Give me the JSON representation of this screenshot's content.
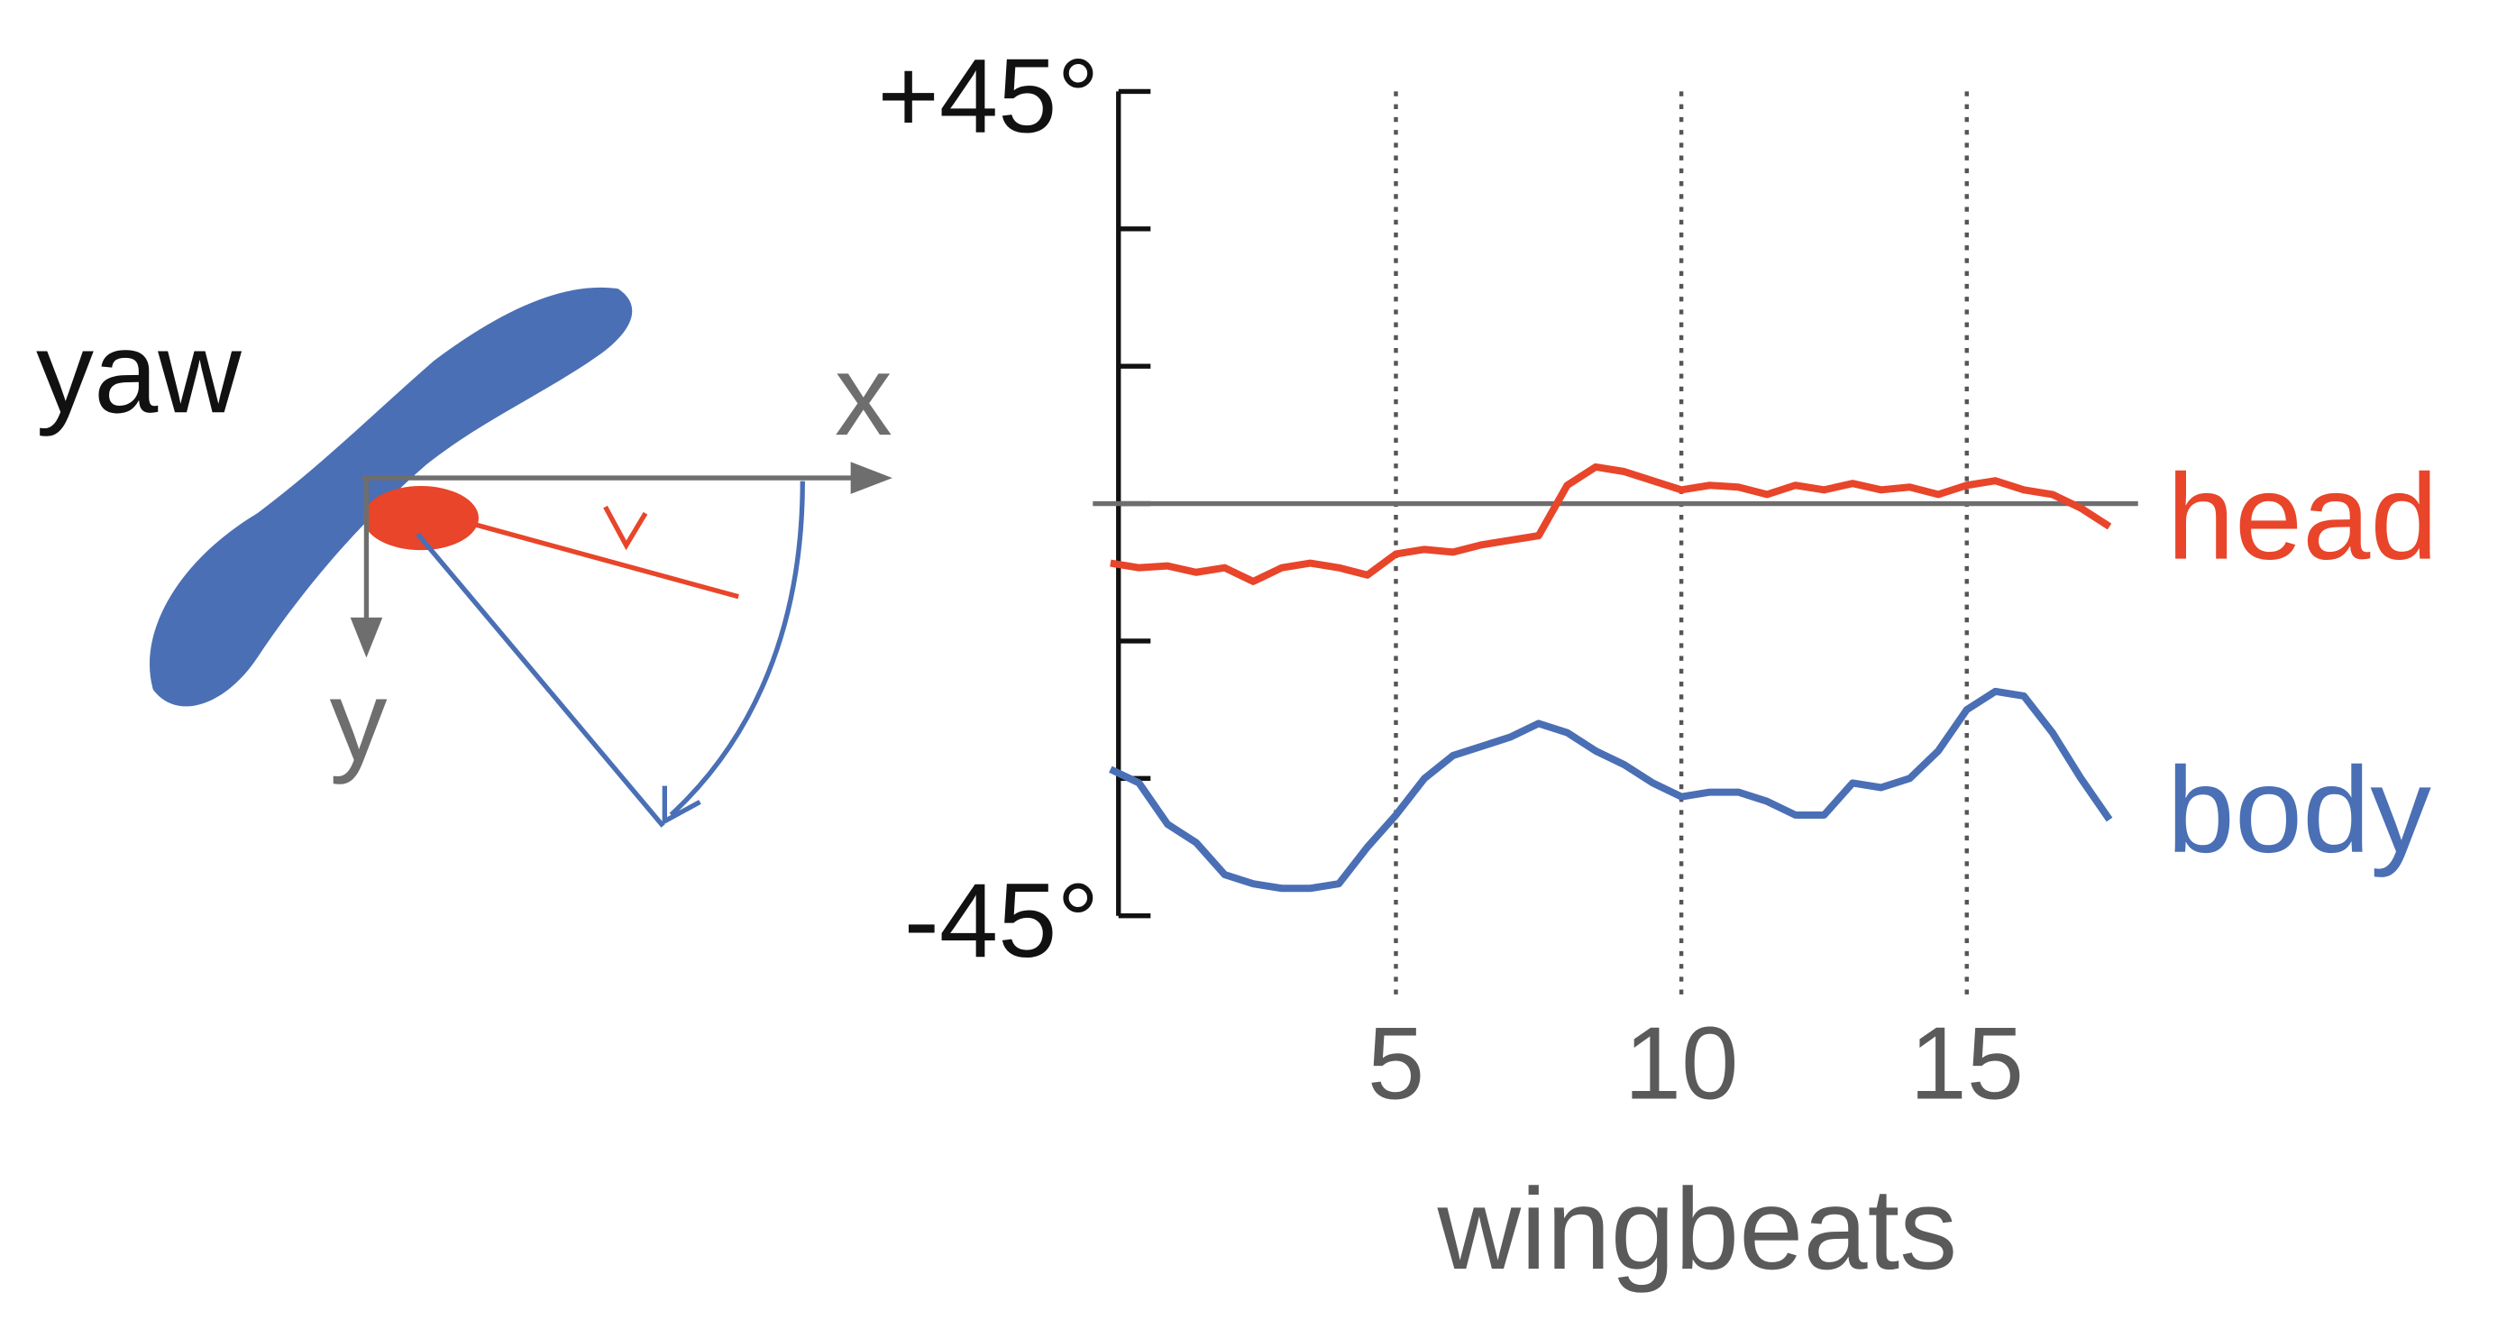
{
  "chart_data": {
    "type": "line",
    "xlabel": "wingbeats",
    "x": [
      0,
      0.5,
      1,
      1.5,
      2,
      2.5,
      3,
      3.5,
      4,
      4.5,
      5,
      5.5,
      6,
      6.5,
      7,
      7.5,
      8,
      8.5,
      9,
      9.5,
      10,
      10.5,
      11,
      11.5,
      12,
      12.5,
      13,
      13.5,
      14,
      14.5,
      15,
      15.5,
      16,
      16.5,
      17,
      17.5
    ],
    "series": [
      {
        "name": "head",
        "color": "#e8452a",
        "values": [
          -6.5,
          -7,
          -6.8,
          -7.5,
          -7,
          -8.5,
          -7,
          -6.5,
          -7,
          -7.8,
          -5.5,
          -5,
          -5.3,
          -4.5,
          -4,
          -3.5,
          2,
          4,
          3.5,
          2.5,
          1.5,
          2,
          1.8,
          1,
          2,
          1.5,
          2.2,
          1.5,
          1.8,
          1,
          2,
          2.5,
          1.5,
          1,
          -0.5,
          -2.5
        ]
      },
      {
        "name": "body",
        "color": "#4a6fb5",
        "values": [
          -29,
          -30.5,
          -35,
          -37,
          -40.5,
          -41.5,
          -42,
          -42,
          -41.5,
          -37.5,
          -34,
          -30,
          -27.5,
          -26.5,
          -25.5,
          -24,
          -25,
          -27,
          -28.5,
          -30.5,
          -32,
          -31.5,
          -31.5,
          -32.5,
          -34,
          -34,
          -30.5,
          -31,
          -30,
          -27,
          -22.5,
          -20.5,
          -21,
          -25,
          -30,
          -34.5
        ]
      }
    ],
    "xlim": [
      0,
      18
    ],
    "xticks": [
      5,
      10,
      15
    ],
    "x_grid": true,
    "ylim": [
      -45,
      45
    ],
    "yticks": [
      {
        "value": 45,
        "label": "+45°"
      },
      {
        "value": -45,
        "label": "-45°"
      }
    ],
    "yticks_minor": [
      30,
      15,
      0,
      -15,
      -30
    ]
  },
  "diagram": {
    "label": "yaw",
    "x_axis": "x",
    "y_axis": "y"
  }
}
